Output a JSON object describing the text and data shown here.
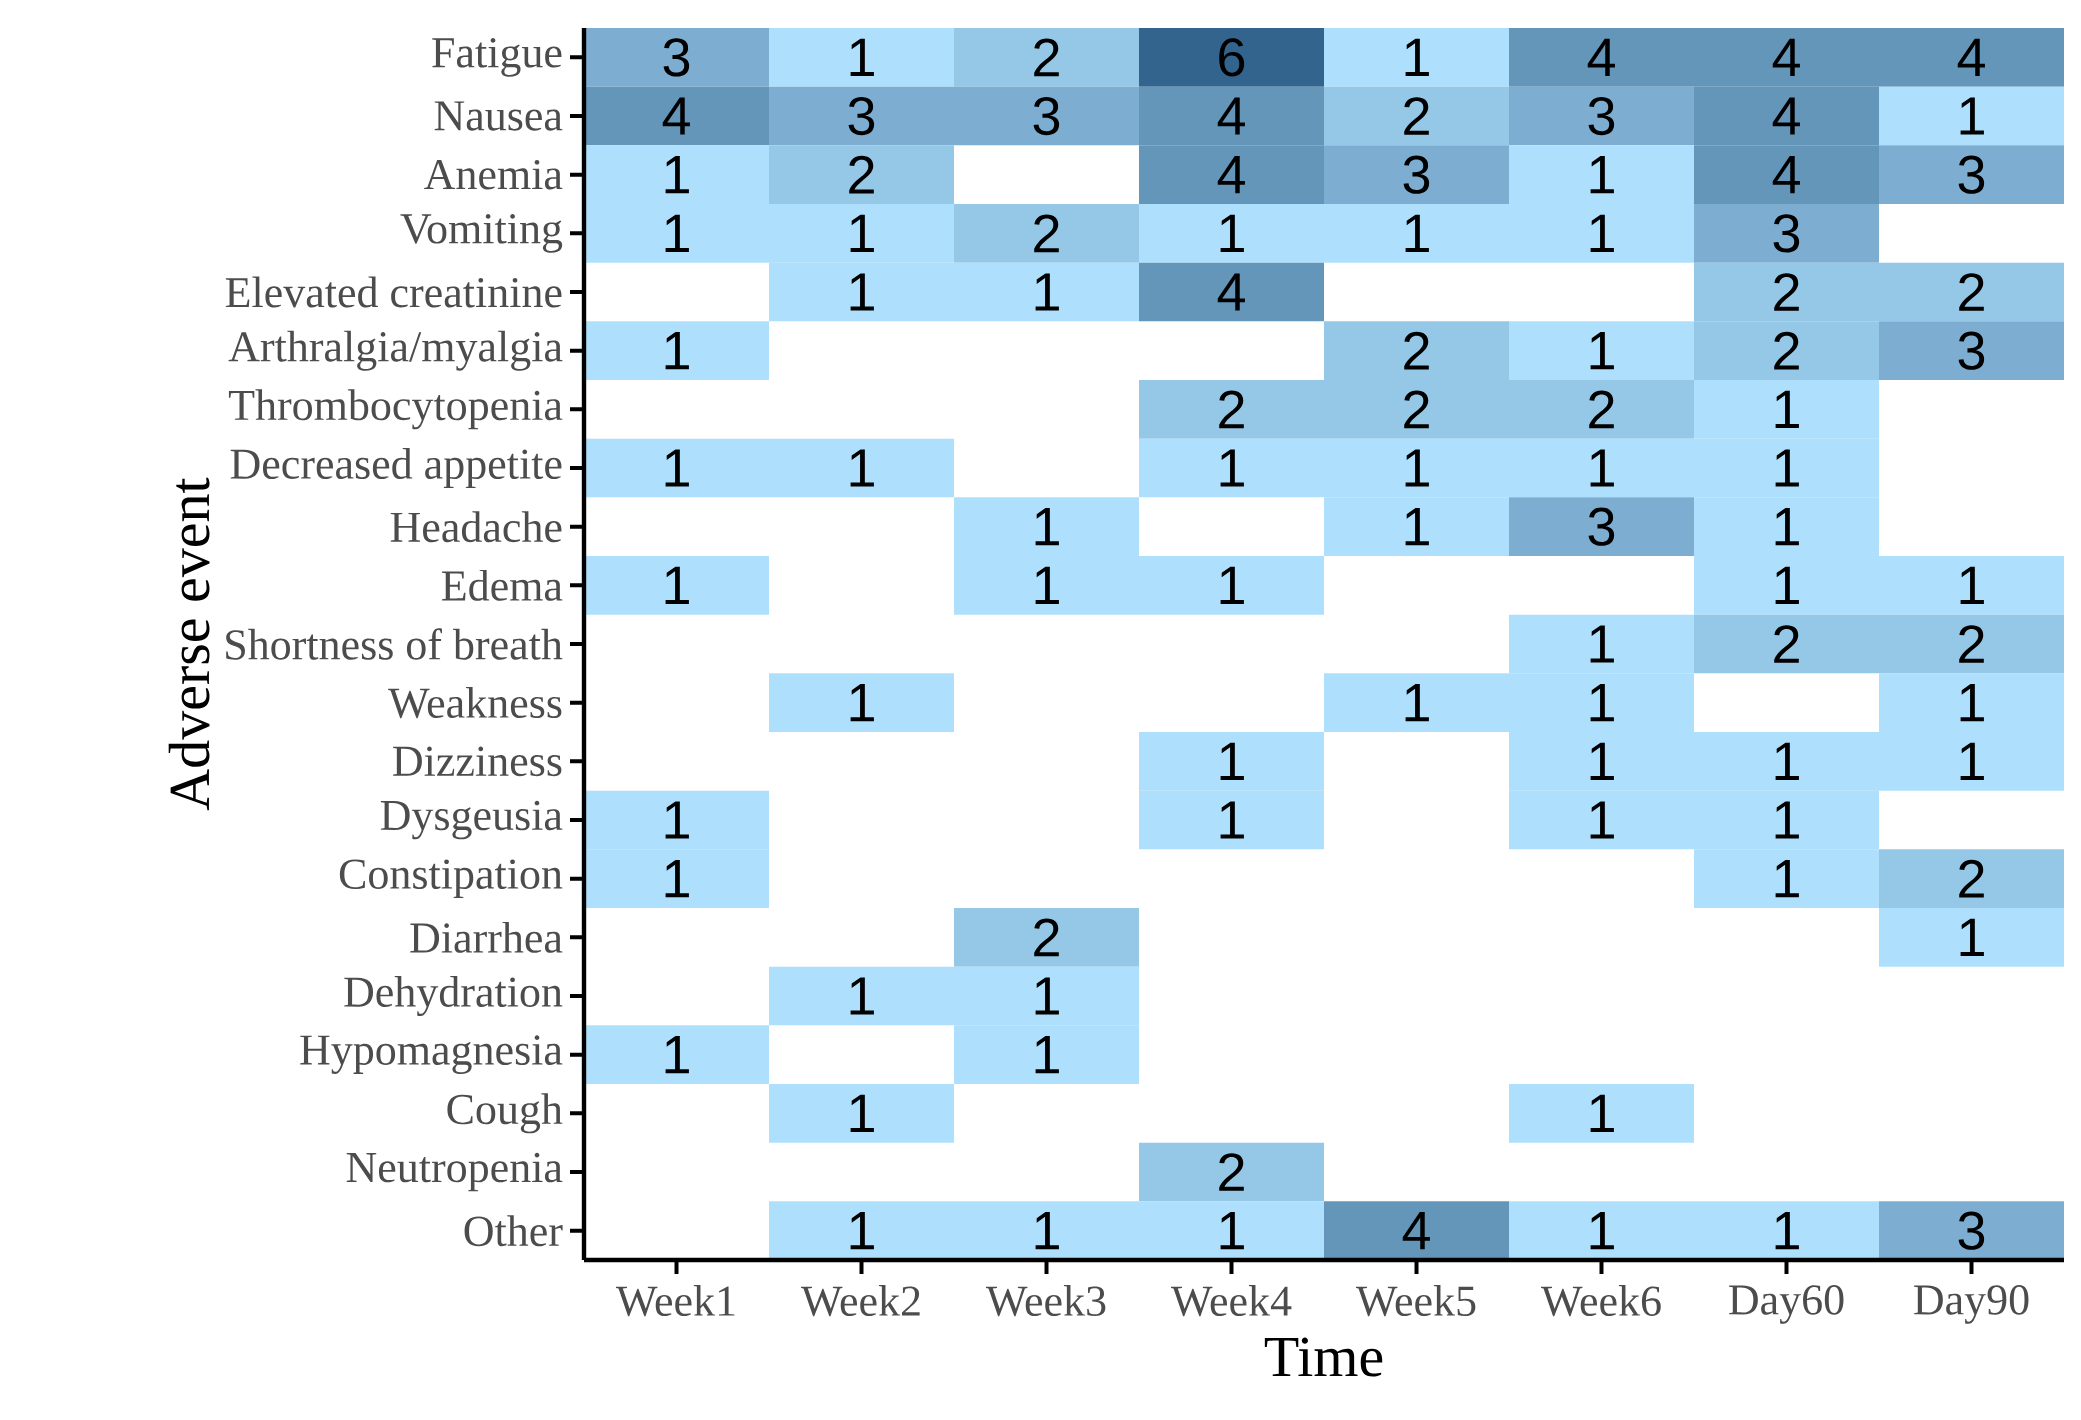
{
  "chart_data": {
    "type": "heatmap",
    "xlabel": "Time",
    "ylabel": "Adverse event",
    "categories": [
      "Week1",
      "Week2",
      "Week3",
      "Week4",
      "Week5",
      "Week6",
      "Day60",
      "Day90"
    ],
    "y_categories": [
      "Fatigue",
      "Nausea",
      "Anemia",
      "Vomiting",
      "Elevated creatinine",
      "Arthralgia/myalgia",
      "Thrombocytopenia",
      "Decreased appetite",
      "Headache",
      "Edema",
      "Shortness of breath",
      "Weakness",
      "Dizziness",
      "Dysgeusia",
      "Constipation",
      "Diarrhea",
      "Dehydration",
      "Hypomagnesia",
      "Cough",
      "Neutropenia",
      "Other"
    ],
    "cells": [
      [
        3,
        1,
        2,
        6,
        1,
        4,
        4,
        4
      ],
      [
        4,
        3,
        3,
        4,
        2,
        3,
        4,
        1
      ],
      [
        1,
        2,
        null,
        4,
        3,
        1,
        4,
        3
      ],
      [
        1,
        1,
        2,
        1,
        1,
        1,
        3,
        null
      ],
      [
        null,
        1,
        1,
        4,
        null,
        null,
        2,
        2
      ],
      [
        1,
        null,
        null,
        null,
        2,
        1,
        2,
        3
      ],
      [
        null,
        null,
        null,
        2,
        2,
        2,
        1,
        null
      ],
      [
        1,
        1,
        null,
        1,
        1,
        1,
        1,
        null
      ],
      [
        null,
        null,
        1,
        null,
        1,
        3,
        1,
        null
      ],
      [
        1,
        null,
        1,
        1,
        null,
        null,
        1,
        1
      ],
      [
        null,
        null,
        null,
        null,
        null,
        1,
        2,
        2
      ],
      [
        null,
        1,
        null,
        null,
        1,
        1,
        null,
        1
      ],
      [
        null,
        null,
        null,
        1,
        null,
        1,
        1,
        1
      ],
      [
        1,
        null,
        null,
        1,
        null,
        1,
        1,
        null
      ],
      [
        1,
        null,
        null,
        null,
        null,
        null,
        1,
        2
      ],
      [
        null,
        null,
        2,
        null,
        null,
        null,
        null,
        1
      ],
      [
        null,
        1,
        1,
        null,
        null,
        null,
        null,
        null
      ],
      [
        1,
        null,
        1,
        null,
        null,
        null,
        null,
        null
      ],
      [
        null,
        1,
        null,
        null,
        null,
        1,
        null,
        null
      ],
      [
        null,
        null,
        null,
        2,
        null,
        null,
        null,
        null
      ],
      [
        null,
        1,
        1,
        1,
        4,
        1,
        1,
        3
      ]
    ],
    "data_labels": true
  }
}
